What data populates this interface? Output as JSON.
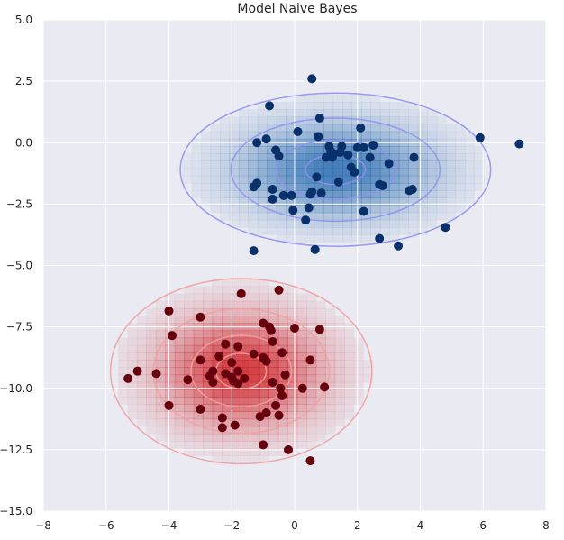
{
  "chart_data": {
    "type": "scatter",
    "title": "Model Naive Bayes",
    "xlabel": "",
    "ylabel": "",
    "xlim": [
      -8,
      8
    ],
    "ylim": [
      -15,
      5
    ],
    "x_ticks": [
      -8,
      -6,
      -4,
      -2,
      0,
      2,
      4,
      6,
      8
    ],
    "y_ticks": [
      5.0,
      2.5,
      0.0,
      -2.5,
      -5.0,
      -7.5,
      -10.0,
      -12.5,
      -15.0
    ],
    "x_tick_labels": [
      "−8",
      "−6",
      "−4",
      "−2",
      "0",
      "2",
      "4",
      "6",
      "8"
    ],
    "y_tick_labels": [
      "5.0",
      "2.5",
      "0.0",
      "−2.5",
      "−5.0",
      "−7.5",
      "−10.0",
      "−12.5",
      "−15.0"
    ],
    "background_color": "#eaeaf2",
    "grid": true,
    "series": [
      {
        "color": "#08306b",
        "gaussian": {
          "mean": [
            1.3,
            -1.1
          ],
          "std": [
            1.9,
            1.2
          ],
          "color": "#2166ac",
          "contour_color": "#9090f0"
        },
        "points": [
          [
            0.55,
            2.6
          ],
          [
            -0.8,
            1.5
          ],
          [
            0.8,
            1.0
          ],
          [
            2.1,
            0.6
          ],
          [
            0.1,
            0.45
          ],
          [
            -1.2,
            0.0
          ],
          [
            -0.9,
            0.15
          ],
          [
            0.75,
            0.25
          ],
          [
            1.1,
            -0.15
          ],
          [
            1.5,
            -0.15
          ],
          [
            2.0,
            -0.2
          ],
          [
            2.2,
            -0.2
          ],
          [
            2.5,
            -0.1
          ],
          [
            1.25,
            -0.45
          ],
          [
            1.15,
            -0.35
          ],
          [
            1.45,
            -0.4
          ],
          [
            1.7,
            -0.5
          ],
          [
            -0.6,
            -0.3
          ],
          [
            -0.5,
            -0.55
          ],
          [
            1.0,
            -0.6
          ],
          [
            1.2,
            -0.6
          ],
          [
            2.4,
            -0.6
          ],
          [
            3.0,
            -0.85
          ],
          [
            3.8,
            -0.6
          ],
          [
            1.8,
            -1.0
          ],
          [
            1.9,
            -1.2
          ],
          [
            0.7,
            -1.4
          ],
          [
            1.4,
            -1.6
          ],
          [
            2.7,
            -1.7
          ],
          [
            2.8,
            -1.75
          ],
          [
            -1.2,
            -1.65
          ],
          [
            -1.3,
            -1.8
          ],
          [
            -0.7,
            -1.9
          ],
          [
            0.55,
            -2.0
          ],
          [
            0.85,
            -2.05
          ],
          [
            0.5,
            -2.1
          ],
          [
            -0.35,
            -2.15
          ],
          [
            -0.1,
            -2.15
          ],
          [
            -0.7,
            -2.3
          ],
          [
            0.45,
            -2.65
          ],
          [
            -0.05,
            -2.75
          ],
          [
            2.2,
            -2.8
          ],
          [
            0.35,
            -3.15
          ],
          [
            3.65,
            -1.95
          ],
          [
            3.75,
            -1.9
          ],
          [
            4.8,
            -3.45
          ],
          [
            5.9,
            0.2
          ],
          [
            7.15,
            -0.05
          ],
          [
            2.7,
            -3.9
          ],
          [
            3.3,
            -4.2
          ],
          [
            0.65,
            -4.35
          ],
          [
            -1.3,
            -4.4
          ]
        ]
      },
      {
        "color": "#67000d",
        "gaussian": {
          "mean": [
            -1.7,
            -9.3
          ],
          "std": [
            1.6,
            1.45
          ],
          "color": "#cb181d",
          "contour_color": "#f0a0a0"
        },
        "points": [
          [
            -1.7,
            -6.15
          ],
          [
            -0.5,
            -6.0
          ],
          [
            -4.0,
            -6.85
          ],
          [
            -3.0,
            -7.1
          ],
          [
            -1.0,
            -7.35
          ],
          [
            -0.8,
            -7.5
          ],
          [
            -0.75,
            -7.65
          ],
          [
            0.0,
            -7.55
          ],
          [
            0.8,
            -7.6
          ],
          [
            -3.9,
            -7.85
          ],
          [
            -2.2,
            -8.2
          ],
          [
            -1.8,
            -8.3
          ],
          [
            -0.7,
            -8.1
          ],
          [
            -2.4,
            -8.7
          ],
          [
            -1.3,
            -8.6
          ],
          [
            -0.4,
            -8.55
          ],
          [
            -1.0,
            -8.75
          ],
          [
            -0.9,
            -8.9
          ],
          [
            -3.0,
            -8.85
          ],
          [
            -2.0,
            -8.95
          ],
          [
            0.5,
            -8.85
          ],
          [
            -2.6,
            -9.3
          ],
          [
            -2.2,
            -9.4
          ],
          [
            -1.8,
            -9.3
          ],
          [
            -2.7,
            -9.5
          ],
          [
            -2.0,
            -9.55
          ],
          [
            -1.6,
            -9.6
          ],
          [
            -3.4,
            -9.65
          ],
          [
            -2.6,
            -9.75
          ],
          [
            -1.95,
            -9.7
          ],
          [
            -1.8,
            -9.8
          ],
          [
            -0.7,
            -9.75
          ],
          [
            -0.3,
            -9.45
          ],
          [
            -0.45,
            -10.0
          ],
          [
            -4.4,
            -9.4
          ],
          [
            -5.0,
            -9.3
          ],
          [
            -5.3,
            -9.6
          ],
          [
            0.25,
            -10.0
          ],
          [
            0.95,
            -9.95
          ],
          [
            -0.4,
            -10.3
          ],
          [
            -0.6,
            -10.7
          ],
          [
            -4.0,
            -10.7
          ],
          [
            -3.0,
            -10.85
          ],
          [
            -0.5,
            -11.1
          ],
          [
            -0.9,
            -11.0
          ],
          [
            -1.1,
            -11.15
          ],
          [
            -2.3,
            -11.2
          ],
          [
            -1.9,
            -11.5
          ],
          [
            -2.3,
            -11.6
          ],
          [
            -1.0,
            -12.3
          ],
          [
            -0.2,
            -12.5
          ],
          [
            0.5,
            -12.95
          ]
        ]
      }
    ]
  }
}
